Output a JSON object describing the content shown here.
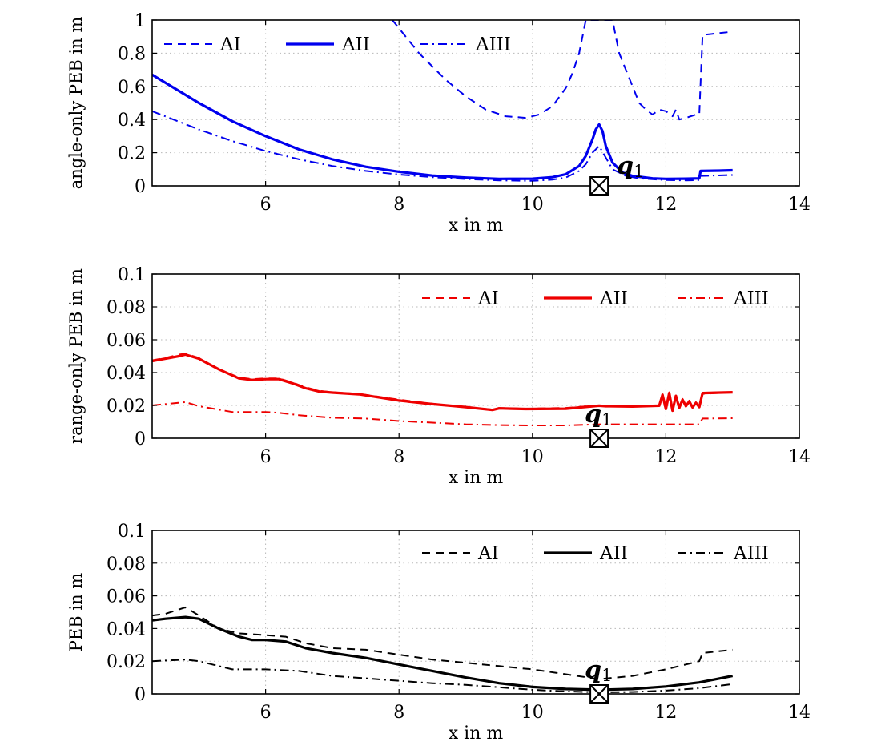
{
  "chart_data": [
    {
      "type": "line",
      "ylabel": "angle-only PEB in m",
      "xlabel": "x in m",
      "xlim": [
        4.3,
        14
      ],
      "ylim": [
        0,
        1
      ],
      "xticks": [
        6,
        8,
        10,
        12,
        14
      ],
      "xtick_labels": [
        "6",
        "8",
        "10",
        "12",
        "14"
      ],
      "yticks": [
        0,
        0.2,
        0.4,
        0.6,
        0.8,
        1
      ],
      "ytick_labels": [
        "0",
        "0.2",
        "0.4",
        "0.6",
        "0.8",
        "1"
      ],
      "grid": true,
      "legend_position": "top-left",
      "color": "#0000ee",
      "marker": {
        "x": 11,
        "y": 0,
        "label": "q",
        "subscript": "1"
      },
      "series": [
        {
          "name": "AI",
          "style": "dashed",
          "x": [
            7.9,
            8.3,
            8.7,
            9.0,
            9.3,
            9.6,
            9.9,
            10.1,
            10.3,
            10.5,
            10.6,
            10.7,
            10.75,
            10.8,
            11.2,
            11.3,
            11.5,
            11.6,
            11.7,
            11.8,
            11.9,
            12.0,
            12.1,
            12.15,
            12.2,
            12.3,
            12.45,
            12.5,
            12.55,
            13.0
          ],
          "y": [
            1.0,
            0.8,
            0.64,
            0.54,
            0.46,
            0.42,
            0.41,
            0.43,
            0.48,
            0.59,
            0.68,
            0.8,
            0.9,
            1.0,
            1.0,
            0.8,
            0.6,
            0.5,
            0.46,
            0.43,
            0.46,
            0.45,
            0.42,
            0.46,
            0.4,
            0.41,
            0.43,
            0.43,
            0.91,
            0.93
          ]
        },
        {
          "name": "AII",
          "style": "solid",
          "x": [
            4.3,
            5.0,
            5.5,
            6.0,
            6.5,
            7.0,
            7.5,
            8.0,
            8.5,
            9.0,
            9.5,
            10.0,
            10.3,
            10.5,
            10.7,
            10.8,
            10.9,
            10.95,
            11.0,
            11.05,
            11.1,
            11.2,
            11.35,
            11.5,
            11.8,
            12.0,
            12.3,
            12.5,
            12.52,
            12.8,
            13.0
          ],
          "y": [
            0.67,
            0.5,
            0.39,
            0.3,
            0.22,
            0.16,
            0.115,
            0.085,
            0.062,
            0.05,
            0.042,
            0.043,
            0.052,
            0.07,
            0.12,
            0.18,
            0.28,
            0.34,
            0.37,
            0.33,
            0.24,
            0.14,
            0.08,
            0.06,
            0.045,
            0.042,
            0.043,
            0.045,
            0.09,
            0.092,
            0.094
          ]
        },
        {
          "name": "AIII",
          "style": "dashdot",
          "x": [
            4.3,
            5.0,
            5.5,
            6.0,
            6.5,
            7.0,
            7.5,
            8.0,
            8.5,
            9.0,
            9.5,
            10.0,
            10.3,
            10.5,
            10.7,
            10.8,
            10.9,
            11.0,
            11.1,
            11.2,
            11.4,
            11.6,
            12.0,
            12.3,
            12.5,
            12.52,
            13.0
          ],
          "y": [
            0.45,
            0.34,
            0.27,
            0.21,
            0.16,
            0.12,
            0.09,
            0.068,
            0.052,
            0.041,
            0.033,
            0.03,
            0.037,
            0.05,
            0.09,
            0.13,
            0.2,
            0.24,
            0.17,
            0.1,
            0.06,
            0.045,
            0.035,
            0.033,
            0.035,
            0.06,
            0.065
          ]
        }
      ]
    },
    {
      "type": "line",
      "ylabel": "range-only PEB in m",
      "xlabel": "x in m",
      "xlim": [
        4.3,
        14
      ],
      "ylim": [
        0,
        0.1
      ],
      "xticks": [
        6,
        8,
        10,
        12,
        14
      ],
      "xtick_labels": [
        "6",
        "8",
        "10",
        "12",
        "14"
      ],
      "yticks": [
        0,
        0.02,
        0.04,
        0.06,
        0.08,
        0.1
      ],
      "ytick_labels": [
        "0",
        "0.02",
        "0.04",
        "0.06",
        "0.08",
        "0.1"
      ],
      "grid": true,
      "legend_position": "top-right",
      "color": "#ee0000",
      "marker": {
        "x": 11,
        "y": 0,
        "label": "q",
        "subscript": "1"
      },
      "series": [
        {
          "name": "AI",
          "style": "dashed",
          "x": [
            4.3,
            4.5,
            4.7,
            4.8,
            5.0,
            5.3,
            5.6,
            5.8,
            6.0,
            6.2,
            6.4,
            6.6,
            6.8,
            7.0,
            7.4,
            8.0,
            8.5,
            9.0,
            9.4,
            9.5,
            9.9,
            10.5,
            11.0,
            11.1,
            11.5,
            11.9,
            11.95,
            12.0,
            12.05,
            12.1,
            12.15,
            12.2,
            12.25,
            12.3,
            12.35,
            12.4,
            12.45,
            12.5,
            12.55,
            13.0
          ],
          "y": [
            0.0475,
            0.049,
            0.051,
            0.0515,
            0.049,
            0.042,
            0.037,
            0.036,
            0.0365,
            0.0365,
            0.034,
            0.031,
            0.029,
            0.028,
            0.027,
            0.0235,
            0.021,
            0.019,
            0.0175,
            0.0185,
            0.018,
            0.0185,
            0.02,
            0.0195,
            0.0195,
            0.02,
            0.027,
            0.018,
            0.028,
            0.017,
            0.026,
            0.019,
            0.024,
            0.02,
            0.023,
            0.019,
            0.022,
            0.0195,
            0.027,
            0.028
          ]
        },
        {
          "name": "AII",
          "style": "solid",
          "x": [
            4.3,
            4.5,
            4.7,
            4.8,
            5.0,
            5.3,
            5.6,
            5.8,
            6.0,
            6.2,
            6.4,
            6.6,
            6.8,
            7.0,
            7.4,
            8.0,
            8.5,
            9.0,
            9.4,
            9.5,
            9.9,
            10.5,
            11.0,
            11.1,
            11.5,
            11.9,
            11.95,
            12.0,
            12.05,
            12.1,
            12.15,
            12.2,
            12.25,
            12.3,
            12.35,
            12.4,
            12.45,
            12.5,
            12.55,
            13.0
          ],
          "y": [
            0.047,
            0.0485,
            0.05,
            0.051,
            0.0485,
            0.042,
            0.0365,
            0.0355,
            0.036,
            0.036,
            0.0335,
            0.0305,
            0.0285,
            0.0278,
            0.0268,
            0.023,
            0.0208,
            0.019,
            0.0172,
            0.0182,
            0.0178,
            0.018,
            0.0198,
            0.0195,
            0.0193,
            0.0198,
            0.0265,
            0.0178,
            0.0275,
            0.0168,
            0.0258,
            0.0185,
            0.0235,
            0.0195,
            0.0225,
            0.0188,
            0.0215,
            0.019,
            0.0275,
            0.028
          ]
        },
        {
          "name": "AIII",
          "style": "dashdot",
          "x": [
            4.3,
            4.8,
            5.0,
            5.5,
            6.0,
            6.2,
            6.5,
            7.0,
            7.5,
            8.0,
            8.5,
            9.0,
            9.5,
            10.0,
            10.5,
            11.0,
            11.5,
            12.0,
            12.5,
            12.55,
            13.0
          ],
          "y": [
            0.02,
            0.022,
            0.0195,
            0.016,
            0.016,
            0.0155,
            0.014,
            0.0125,
            0.012,
            0.0105,
            0.0095,
            0.0085,
            0.008,
            0.0078,
            0.0078,
            0.0085,
            0.0085,
            0.0085,
            0.0085,
            0.012,
            0.0122
          ]
        }
      ]
    },
    {
      "type": "line",
      "ylabel": "PEB in m",
      "xlabel": "x in m",
      "xlim": [
        4.3,
        14
      ],
      "ylim": [
        0,
        0.1
      ],
      "xticks": [
        6,
        8,
        10,
        12,
        14
      ],
      "xtick_labels": [
        "6",
        "8",
        "10",
        "12",
        "14"
      ],
      "yticks": [
        0,
        0.02,
        0.04,
        0.06,
        0.08,
        0.1
      ],
      "ytick_labels": [
        "0",
        "0.02",
        "0.04",
        "0.06",
        "0.08",
        "0.1"
      ],
      "grid": true,
      "legend_position": "top-right",
      "color": "#000000",
      "marker": {
        "x": 11,
        "y": 0,
        "label": "q",
        "subscript": "1"
      },
      "series": [
        {
          "name": "AI",
          "style": "dashed",
          "x": [
            4.3,
            4.5,
            4.8,
            5.0,
            5.3,
            5.6,
            6.0,
            6.3,
            6.6,
            7.0,
            7.5,
            8.0,
            8.5,
            9.0,
            9.5,
            10.0,
            10.5,
            11.0,
            11.5,
            12.0,
            12.2,
            12.3,
            12.5,
            12.55,
            13.0
          ],
          "y": [
            0.048,
            0.049,
            0.053,
            0.048,
            0.04,
            0.037,
            0.036,
            0.035,
            0.031,
            0.028,
            0.027,
            0.024,
            0.021,
            0.019,
            0.017,
            0.015,
            0.012,
            0.009,
            0.011,
            0.015,
            0.017,
            0.018,
            0.02,
            0.025,
            0.027
          ]
        },
        {
          "name": "AII",
          "style": "solid",
          "x": [
            4.3,
            4.5,
            4.8,
            5.0,
            5.3,
            5.6,
            5.8,
            6.0,
            6.3,
            6.6,
            7.0,
            7.5,
            8.0,
            8.5,
            9.0,
            9.5,
            10.0,
            10.5,
            11.0,
            11.5,
            12.0,
            12.5,
            13.0
          ],
          "y": [
            0.045,
            0.046,
            0.047,
            0.046,
            0.04,
            0.035,
            0.033,
            0.033,
            0.032,
            0.028,
            0.025,
            0.022,
            0.018,
            0.014,
            0.01,
            0.0065,
            0.0042,
            0.003,
            0.0025,
            0.003,
            0.0045,
            0.007,
            0.011
          ]
        },
        {
          "name": "AIII",
          "style": "dashdot",
          "x": [
            4.3,
            4.8,
            5.0,
            5.5,
            6.0,
            6.5,
            7.0,
            7.5,
            8.0,
            8.5,
            9.0,
            9.5,
            10.0,
            10.5,
            11.0,
            11.5,
            12.0,
            12.5,
            13.0
          ],
          "y": [
            0.02,
            0.021,
            0.02,
            0.015,
            0.015,
            0.014,
            0.011,
            0.0095,
            0.008,
            0.0065,
            0.0055,
            0.004,
            0.0025,
            0.0015,
            0.001,
            0.0012,
            0.002,
            0.0035,
            0.006
          ]
        }
      ]
    }
  ]
}
